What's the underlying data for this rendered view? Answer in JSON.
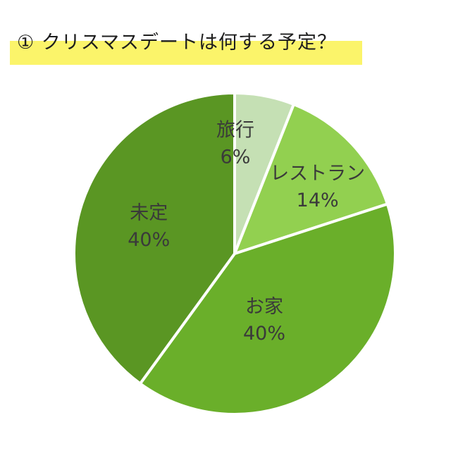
{
  "title": "① クリスマスデートは何する予定？",
  "colors": {
    "highlight": "#fbf46a",
    "label_text": "#3a3a3a",
    "slice_separator": "#ffffff"
  },
  "chart_data": {
    "type": "pie",
    "start_angle_deg": 0,
    "direction": "clockwise",
    "slices": [
      {
        "label": "旅行",
        "value": 6,
        "value_label": "6%",
        "color": "#c5e0b4"
      },
      {
        "label": "レストラン",
        "value": 14,
        "value_label": "14%",
        "color": "#92d050"
      },
      {
        "label": "お家",
        "value": 40,
        "value_label": "40%",
        "color": "#6aaf2a"
      },
      {
        "label": "未定",
        "value": 40,
        "value_label": "40%",
        "color": "#5a9623"
      }
    ]
  }
}
